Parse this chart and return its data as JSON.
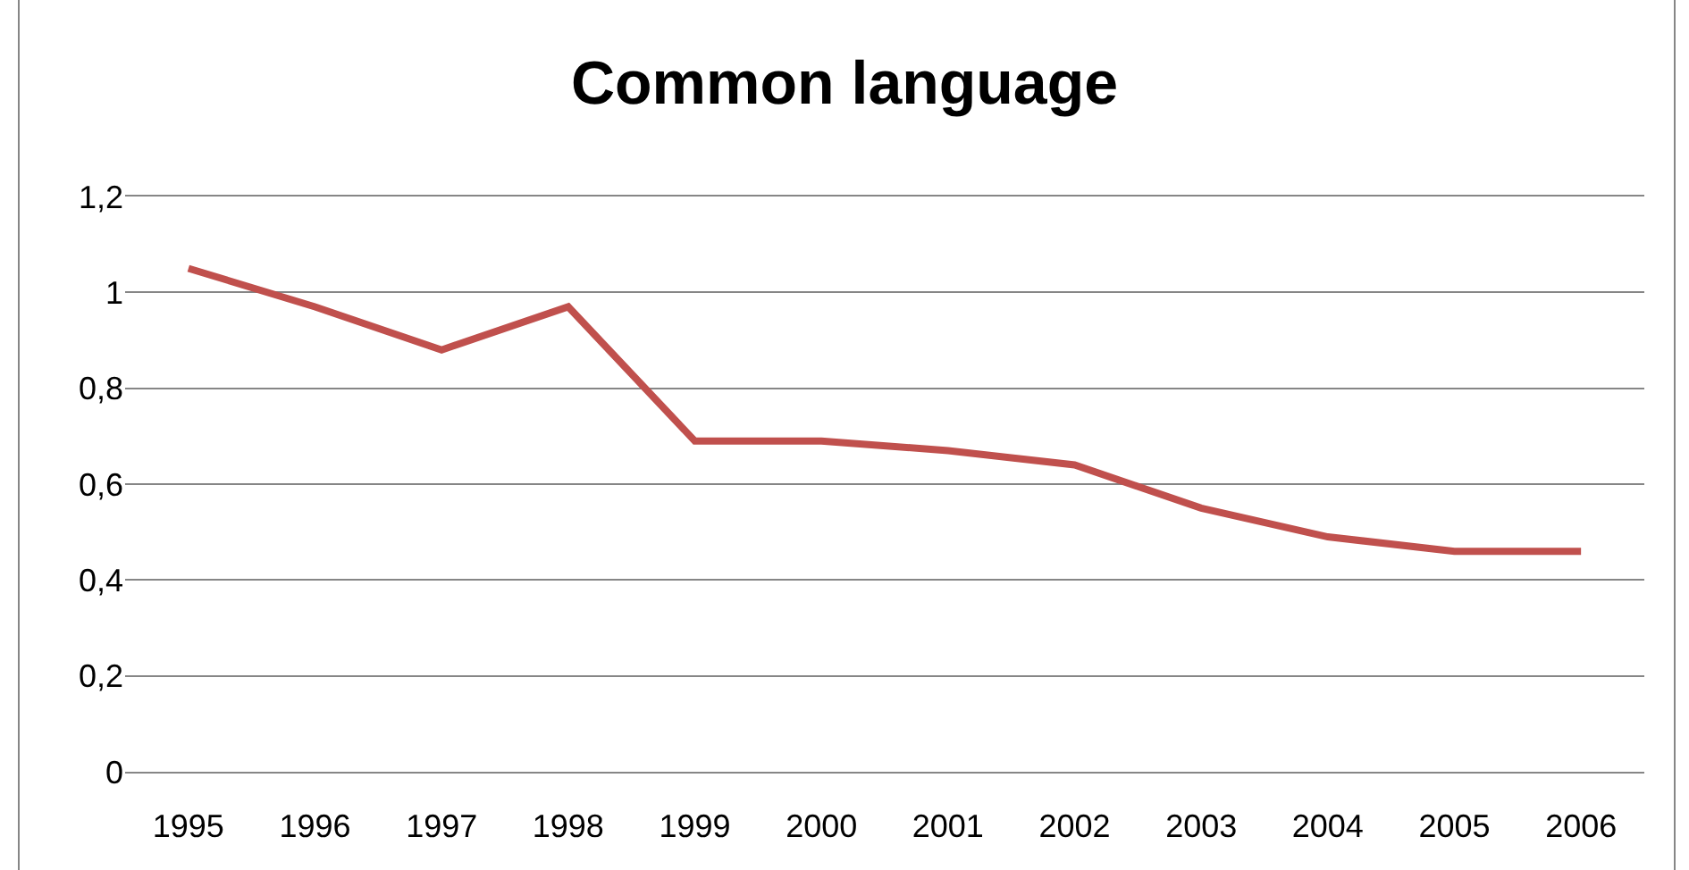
{
  "chart_data": {
    "type": "line",
    "title": "Common language",
    "categories": [
      "1995",
      "1996",
      "1997",
      "1998",
      "1999",
      "2000",
      "2001",
      "2002",
      "2003",
      "2004",
      "2005",
      "2006"
    ],
    "series": [
      {
        "color": "#c0504d",
        "values": [
          1.05,
          0.97,
          0.88,
          0.97,
          0.69,
          0.69,
          0.67,
          0.64,
          0.55,
          0.49,
          0.46,
          0.46
        ]
      }
    ],
    "ylim": [
      0,
      1.2
    ],
    "yticks": [
      0,
      {
        "value": 0.2,
        "label": "0,2"
      },
      {
        "value": 0.4,
        "label": "0,4"
      },
      {
        "value": 0.6,
        "label": "0,6"
      },
      {
        "value": 0.8,
        "label": "0,8"
      },
      1,
      {
        "value": 1.2,
        "label": "1,2"
      }
    ],
    "grid": "y",
    "marker": "none",
    "line_style": "solid"
  }
}
